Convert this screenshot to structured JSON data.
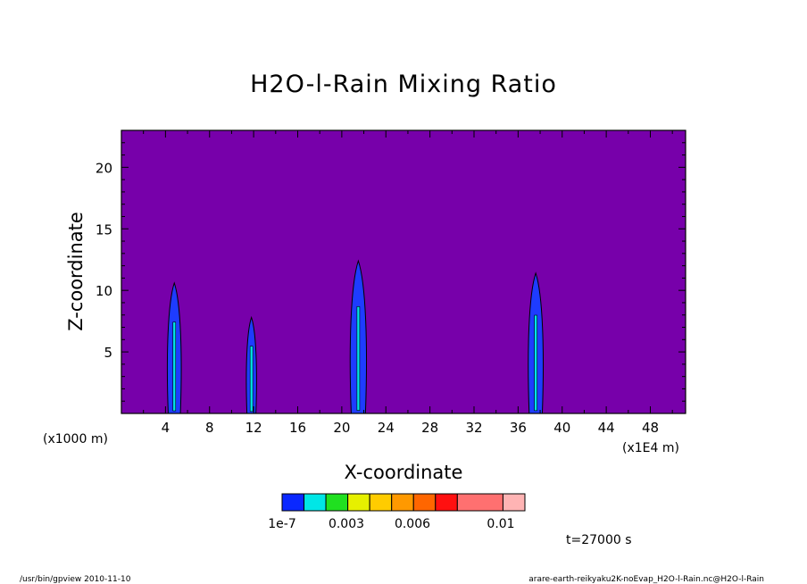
{
  "chart_data": {
    "type": "heatmap",
    "title": "H2O-l-Rain Mixing Ratio",
    "xlabel": "X-coordinate",
    "ylabel": "Z-coordinate",
    "x_unit_left": "(x1000 m)",
    "x_unit_right": "(x1E4 m)",
    "x_tick_labels": [
      "4",
      "8",
      "12",
      "16",
      "20",
      "24",
      "28",
      "32",
      "36",
      "40",
      "44",
      "48"
    ],
    "x_ticks": [
      4,
      8,
      12,
      16,
      20,
      24,
      28,
      32,
      36,
      40,
      44,
      48
    ],
    "y_tick_labels": [
      "5",
      "10",
      "15",
      "20"
    ],
    "y_ticks": [
      5,
      10,
      15,
      20
    ],
    "xlim": [
      0,
      51.2
    ],
    "ylim": [
      0,
      23
    ],
    "background_color": "#7700aa",
    "plumes": [
      {
        "center_x": 4.8,
        "top_z": 10.6,
        "color": "#1e3cff"
      },
      {
        "center_x": 11.8,
        "top_z": 7.8,
        "color": "#1e3cff"
      },
      {
        "center_x": 21.5,
        "top_z": 12.4,
        "color": "#1e3cff"
      },
      {
        "center_x": 37.6,
        "top_z": 11.4,
        "color": "#1e3cff"
      }
    ],
    "colorbar": {
      "colors": [
        "#0a28ff",
        "#00e6e6",
        "#20e020",
        "#e6f000",
        "#ffcc00",
        "#ff9900",
        "#ff6600",
        "#ff1010",
        "#ff7070",
        "#ffb4b4"
      ],
      "labels": [
        "1e-7",
        "0.003",
        "0.006",
        "0.01"
      ]
    },
    "time_label": "t=27000 s",
    "footer_left": "/usr/bin/gpview  2010-11-10",
    "footer_right": "arare-earth-reikyaku2K-noEvap_H2O-l-Rain.nc@H2O-l-Rain"
  }
}
